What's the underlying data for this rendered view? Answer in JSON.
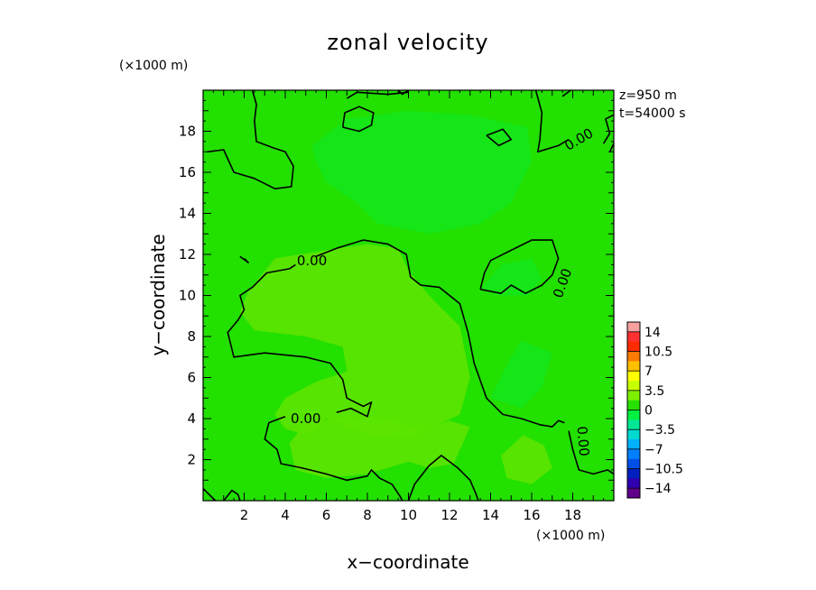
{
  "chart_data": {
    "type": "heatmap",
    "title": "zonal velocity",
    "xlabel": "x−coordinate",
    "ylabel": "y−coordinate",
    "x_unit": "(×1000 m)",
    "y_unit": "(×1000 m)",
    "xlim": [
      0,
      20
    ],
    "ylim": [
      0,
      20
    ],
    "x_ticks": [
      "2",
      "4",
      "6",
      "8",
      "10",
      "12",
      "14",
      "16",
      "18"
    ],
    "y_ticks": [
      "2",
      "4",
      "6",
      "8",
      "10",
      "12",
      "14",
      "16",
      "18"
    ],
    "info": [
      "z=950  m",
      "t=54000  s"
    ],
    "colorbar": {
      "labels": [
        "14",
        "10.5",
        "7",
        "3.5",
        "0",
        "−3.5",
        "−7",
        "−10.5",
        "−14"
      ],
      "colors_top_to_bottom": [
        "#f7a0a0",
        "#ff3030",
        "#ff2a00",
        "#ff7a00",
        "#ffc000",
        "#ffff00",
        "#c8ff00",
        "#7cf000",
        "#28e000",
        "#00ef40",
        "#00e896",
        "#00d8d0",
        "#00b0ff",
        "#0080ff",
        "#0050e8",
        "#0020c0",
        "#3000b0",
        "#60008a"
      ]
    },
    "contour_labels": [
      "0.00",
      "0.00",
      "0.00",
      "0.00",
      "0.00"
    ],
    "background_color": "#22e000",
    "regions": [
      {
        "kind": "positive",
        "color": "#5ce400",
        "pts": [
          [
            2.2,
            10.2
          ],
          [
            3.5,
            11.8
          ],
          [
            6,
            12.2
          ],
          [
            8,
            12.5
          ],
          [
            9.5,
            12.3
          ],
          [
            10,
            11.2
          ],
          [
            11,
            10
          ],
          [
            12.5,
            8.5
          ],
          [
            13,
            6
          ],
          [
            12.5,
            4.2
          ],
          [
            11,
            3.5
          ],
          [
            10,
            3
          ],
          [
            8,
            3.2
          ],
          [
            6,
            4
          ],
          [
            5,
            3.2
          ],
          [
            4,
            3.5
          ],
          [
            3.5,
            4.2
          ],
          [
            4,
            5
          ],
          [
            5.5,
            5.8
          ],
          [
            7,
            6.3
          ],
          [
            6.8,
            7.5
          ],
          [
            5,
            8
          ],
          [
            2.5,
            8.3
          ],
          [
            1.8,
            9.2
          ]
        ]
      },
      {
        "kind": "positive",
        "color": "#5ce400",
        "pts": [
          [
            4.2,
            2.8
          ],
          [
            5,
            3.8
          ],
          [
            7,
            4.1
          ],
          [
            9,
            4
          ],
          [
            10.5,
            3.4
          ],
          [
            12,
            3.9
          ],
          [
            13,
            3.6
          ],
          [
            12.2,
            1.8
          ],
          [
            11,
            1.6
          ],
          [
            10,
            1.9
          ],
          [
            8,
            1.3
          ],
          [
            6,
            1.1
          ],
          [
            4.5,
            1.5
          ]
        ]
      },
      {
        "kind": "positive",
        "color": "#5ce400",
        "pts": [
          [
            14.5,
            2.2
          ],
          [
            15.6,
            3.2
          ],
          [
            16.6,
            2.7
          ],
          [
            17,
            1.6
          ],
          [
            16,
            0.8
          ],
          [
            14.8,
            1.1
          ]
        ]
      },
      {
        "kind": "negative",
        "color": "#15e61a",
        "pts": [
          [
            5.3,
            17.3
          ],
          [
            7,
            18.6
          ],
          [
            10,
            19
          ],
          [
            13,
            18.8
          ],
          [
            15.8,
            18.2
          ],
          [
            16,
            16.5
          ],
          [
            15,
            14.5
          ],
          [
            13.5,
            13.5
          ],
          [
            11,
            13
          ],
          [
            8.5,
            13.5
          ],
          [
            7.5,
            14.5
          ],
          [
            6,
            15.5
          ],
          [
            5.5,
            16.5
          ]
        ]
      },
      {
        "kind": "negative",
        "color": "#15e61a",
        "pts": [
          [
            14,
            5
          ],
          [
            15,
            7
          ],
          [
            15.5,
            7.8
          ],
          [
            17,
            7.2
          ],
          [
            16.5,
            5.5
          ],
          [
            15.5,
            4.5
          ]
        ]
      },
      {
        "kind": "negative",
        "color": "#15e61a",
        "pts": [
          [
            13.5,
            10.3
          ],
          [
            14.5,
            11.5
          ],
          [
            16,
            11.8
          ],
          [
            16.5,
            10.8
          ],
          [
            15.8,
            10
          ],
          [
            14.5,
            10
          ]
        ]
      }
    ],
    "contours": [
      [
        [
          0.2,
          17.0
        ],
        [
          1.0,
          17.1
        ],
        [
          1.5,
          16.0
        ],
        [
          2.5,
          15.7
        ],
        [
          3.5,
          15.2
        ],
        [
          4.3,
          15.3
        ],
        [
          4.4,
          16.3
        ],
        [
          4.0,
          17.0
        ],
        [
          3.4,
          17.2
        ],
        [
          2.6,
          17.5
        ],
        [
          2.5,
          18.5
        ],
        [
          2.6,
          19.3
        ],
        [
          2.4,
          20
        ]
      ],
      [
        [
          7.0,
          19.6
        ],
        [
          7.5,
          19.9
        ],
        [
          9.0,
          19.8
        ],
        [
          10.0,
          19.9
        ]
      ],
      [
        [
          6.8,
          18.2
        ],
        [
          7.6,
          18.0
        ],
        [
          8.2,
          18.3
        ],
        [
          8.3,
          18.9
        ],
        [
          7.6,
          19.2
        ],
        [
          6.9,
          18.9
        ],
        [
          6.8,
          18.2
        ]
      ],
      [
        [
          13.8,
          17.8
        ],
        [
          14.6,
          18.1
        ],
        [
          15.0,
          17.6
        ],
        [
          14.4,
          17.3
        ],
        [
          13.8,
          17.8
        ]
      ],
      [
        [
          16.2,
          20
        ],
        [
          16.5,
          18.9
        ],
        [
          16.4,
          17.6
        ],
        [
          16.3,
          17.0
        ],
        [
          17.3,
          17.3
        ],
        [
          17.8,
          17.6
        ]
      ],
      [
        [
          19.5,
          17.4
        ],
        [
          19.8,
          17.9
        ],
        [
          19.6,
          18.6
        ],
        [
          20,
          18.8
        ]
      ],
      [
        [
          19.8,
          17.0
        ],
        [
          20,
          17.4
        ]
      ],
      [
        [
          1.8,
          11.9
        ],
        [
          2.2,
          11.6
        ],
        [
          2.0,
          11.8
        ]
      ],
      [
        [
          4.5,
          11.5
        ],
        [
          4.2,
          11.3
        ],
        [
          3.1,
          11.1
        ],
        [
          2.4,
          10.4
        ],
        [
          1.8,
          10.0
        ],
        [
          2.0,
          9.3
        ],
        [
          1.7,
          8.8
        ],
        [
          1.2,
          8.2
        ],
        [
          1.5,
          7.0
        ],
        [
          3.0,
          7.2
        ],
        [
          5.0,
          7.0
        ],
        [
          6.2,
          6.7
        ],
        [
          6.8,
          5.9
        ],
        [
          7.0,
          5.0
        ],
        [
          7.8,
          4.6
        ],
        [
          8.2,
          4.8
        ],
        [
          8.0,
          4.1
        ],
        [
          7.2,
          4.5
        ],
        [
          6.5,
          4.3
        ]
      ],
      [
        [
          5.5,
          11.9
        ],
        [
          6.5,
          12.3
        ],
        [
          7.8,
          12.7
        ],
        [
          9.0,
          12.5
        ],
        [
          9.9,
          12.0
        ],
        [
          10.1,
          10.9
        ],
        [
          10.6,
          10.5
        ],
        [
          11.5,
          10.4
        ],
        [
          12.5,
          9.6
        ],
        [
          12.9,
          8.2
        ],
        [
          13.2,
          6.7
        ],
        [
          13.8,
          5.0
        ],
        [
          14.6,
          4.2
        ],
        [
          15.5,
          4.0
        ],
        [
          16.4,
          3.7
        ],
        [
          17.0,
          3.6
        ],
        [
          17.3,
          3.9
        ],
        [
          17.6,
          3.8
        ]
      ],
      [
        [
          4.0,
          4.1
        ],
        [
          3.2,
          3.8
        ],
        [
          3.0,
          3.0
        ],
        [
          3.6,
          2.5
        ],
        [
          3.8,
          1.8
        ],
        [
          4.8,
          1.6
        ],
        [
          6.0,
          1.3
        ],
        [
          7.0,
          1.0
        ],
        [
          8.0,
          1.2
        ],
        [
          8.2,
          1.5
        ],
        [
          8.6,
          1.1
        ],
        [
          9.2,
          0.8
        ],
        [
          9.6,
          0.2
        ],
        [
          9.7,
          0
        ]
      ],
      [
        [
          10.0,
          0
        ],
        [
          10.3,
          0.8
        ],
        [
          11.0,
          1.7
        ],
        [
          11.6,
          2.2
        ],
        [
          12.4,
          1.6
        ],
        [
          13.0,
          1.0
        ],
        [
          13.3,
          0.3
        ],
        [
          13.4,
          0
        ]
      ],
      [
        [
          17.8,
          3.4
        ],
        [
          18.0,
          2.5
        ],
        [
          18.3,
          1.5
        ],
        [
          19.0,
          1.3
        ],
        [
          19.7,
          1.5
        ],
        [
          20,
          1.3
        ]
      ],
      [
        [
          0,
          0.6
        ],
        [
          0.4,
          0.2
        ],
        [
          0.6,
          0
        ]
      ],
      [
        [
          1.0,
          0
        ],
        [
          1.4,
          0.5
        ],
        [
          1.7,
          0.3
        ],
        [
          1.8,
          0
        ]
      ],
      [
        [
          13.5,
          10.3
        ],
        [
          14.5,
          10.1
        ],
        [
          15.0,
          10.5
        ],
        [
          15.7,
          10.1
        ],
        [
          16.5,
          10.5
        ],
        [
          17.0,
          11.0
        ],
        [
          17.3,
          11.8
        ],
        [
          17.0,
          12.7
        ],
        [
          16.0,
          12.7
        ],
        [
          15.0,
          12.2
        ],
        [
          14.0,
          11.7
        ],
        [
          13.7,
          11.1
        ],
        [
          13.5,
          10.3
        ]
      ],
      [
        [
          9.5,
          20
        ],
        [
          9.7,
          19.8
        ],
        [
          10.0,
          20
        ]
      ],
      [
        [
          17.5,
          19.7
        ],
        [
          17.9,
          20
        ]
      ]
    ]
  }
}
